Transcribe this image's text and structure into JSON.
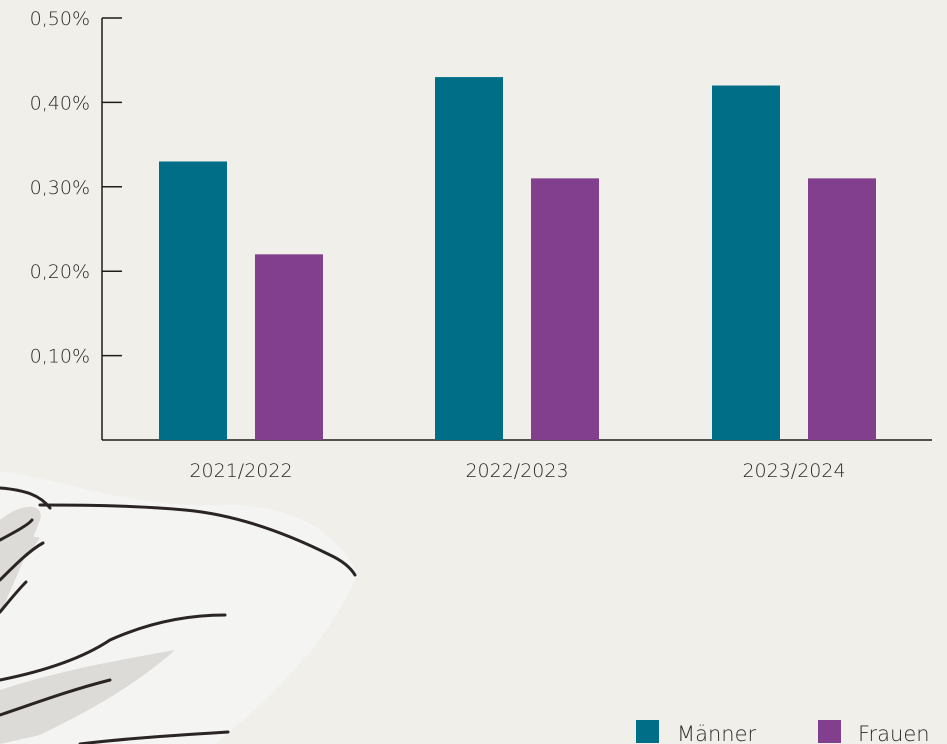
{
  "colors": {
    "background": "#f1efea",
    "maenner": "#006e87",
    "frauen": "#823f8e",
    "axis": "#1f1c1c",
    "illustration_fill": "#f4f4f3",
    "illustration_shadow": "#dddbd7",
    "illustration_line": "#2b2424"
  },
  "illustration": {
    "icon": "hand-drawing-icon"
  },
  "chart_data": {
    "type": "bar",
    "categories": [
      "2021/2022",
      "2022/2023",
      "2023/2024"
    ],
    "series": [
      {
        "name": "Männer",
        "values": [
          0.33,
          0.43,
          0.42
        ],
        "color": "#006e87"
      },
      {
        "name": "Frauen",
        "values": [
          0.22,
          0.31,
          0.31
        ],
        "color": "#823f8e"
      }
    ],
    "yticks": [
      {
        "value": 0.1,
        "label": "0,10%"
      },
      {
        "value": 0.2,
        "label": "0,20%"
      },
      {
        "value": 0.3,
        "label": "0,30%"
      },
      {
        "value": 0.4,
        "label": "0,40%"
      },
      {
        "value": 0.5,
        "label": "0,50%"
      }
    ],
    "ylim": [
      0,
      0.5
    ],
    "title": "",
    "xlabel": "",
    "ylabel": "",
    "grid": false,
    "legend": "bottom-right"
  }
}
